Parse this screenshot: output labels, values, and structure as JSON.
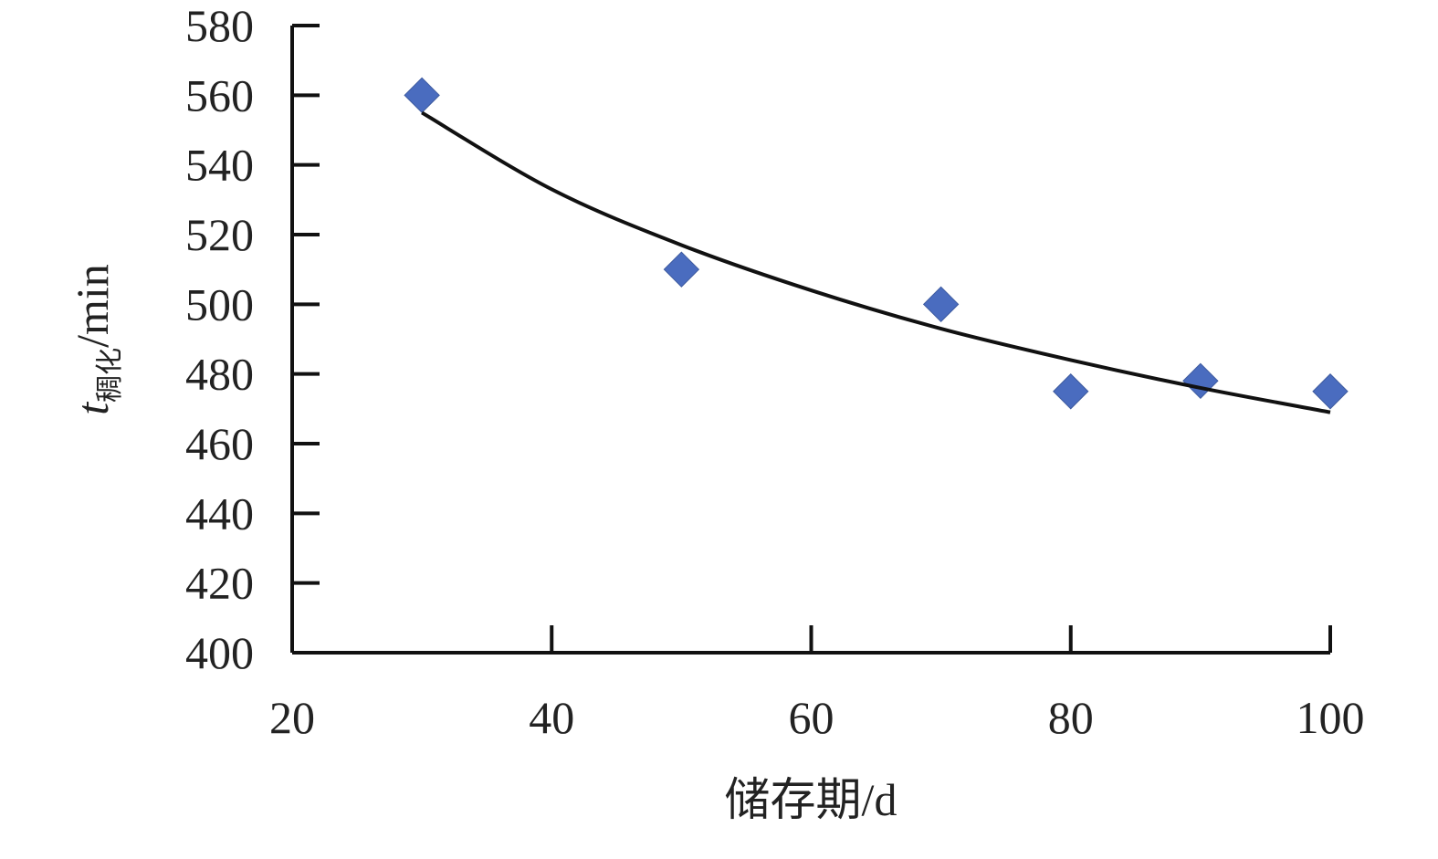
{
  "chart_data": {
    "type": "scatter",
    "x_label": "储存期/d",
    "y_label": {
      "main": "t",
      "sub": "稠化",
      "unit": "/min"
    },
    "xlim": [
      20,
      100
    ],
    "xticks": [
      20,
      40,
      60,
      80,
      100
    ],
    "ylim": [
      400,
      580
    ],
    "yticks": [
      400,
      420,
      440,
      460,
      480,
      500,
      520,
      540,
      560,
      580
    ],
    "series": [
      {
        "kind": "points",
        "color": "#4a6cbf",
        "x": [
          30,
          50,
          70,
          80,
          90,
          100
        ],
        "values": [
          560,
          510,
          500,
          475,
          478,
          475
        ]
      },
      {
        "kind": "trendline",
        "color": "#111111",
        "x": [
          30,
          40,
          50,
          60,
          70,
          80,
          90,
          100
        ],
        "values": [
          555,
          533,
          517,
          504,
          493,
          484,
          476,
          469
        ]
      }
    ]
  }
}
